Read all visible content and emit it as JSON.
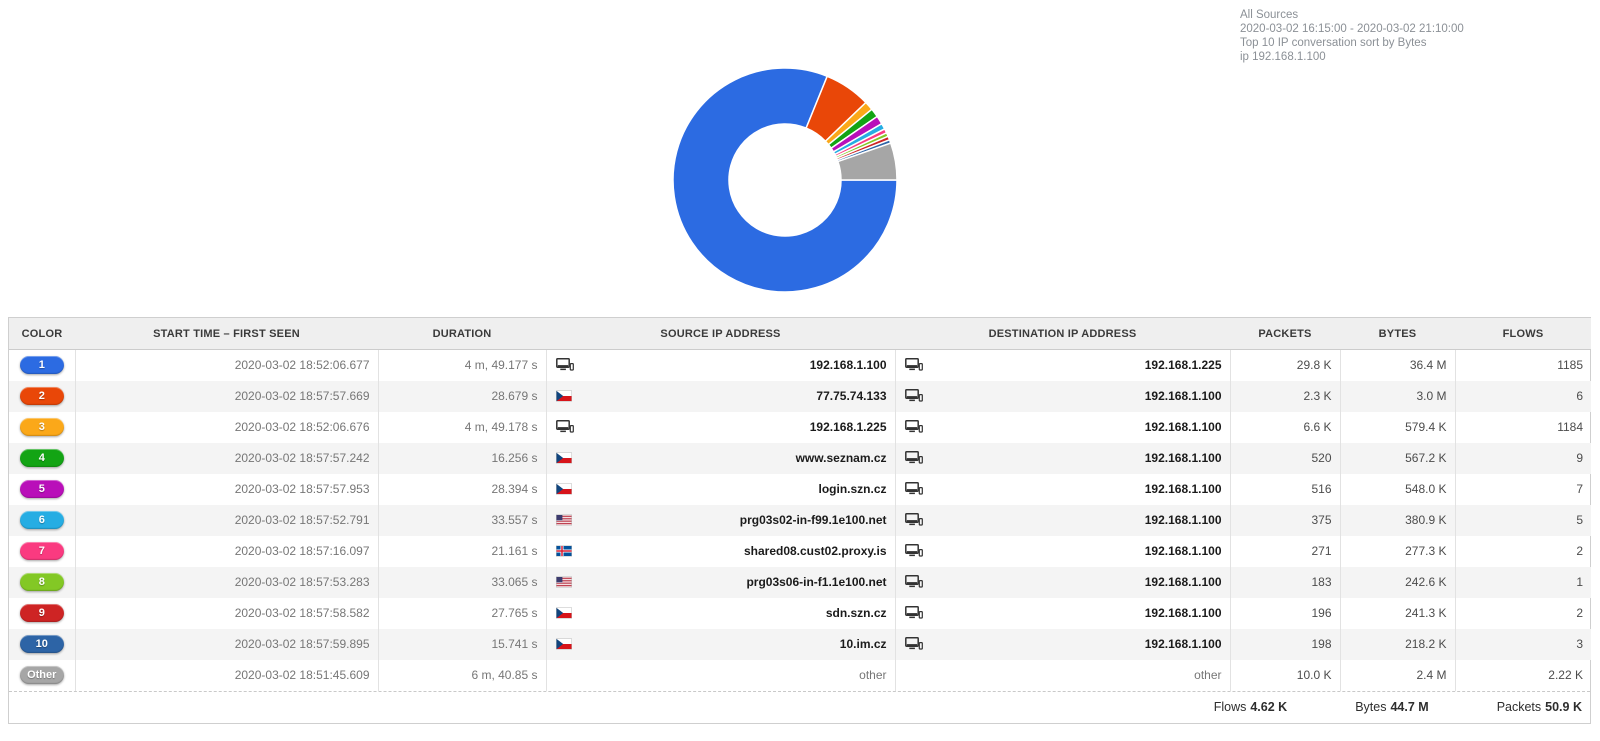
{
  "header_info": {
    "source": "All Sources",
    "time_range": "2020-03-02 16:15:00 - 2020-03-02 21:10:00",
    "report": "Top 10 IP conversation sort by Bytes",
    "filter": "ip 192.168.1.100"
  },
  "chart_data": {
    "type": "pie",
    "subtype": "donut",
    "title": "Top 10 IP conversation sort by Bytes",
    "value_unit": "bytes",
    "start_angle_deg": 90,
    "direction": "clockwise",
    "inner_radius_ratio": 0.5,
    "legend_position": "none",
    "labels": [
      "1",
      "2",
      "3",
      "4",
      "5",
      "6",
      "7",
      "8",
      "9",
      "10",
      "Other"
    ],
    "slice_names": [
      "192.168.1.100 > 192.168.1.225",
      "77.75.74.133 > 192.168.1.100",
      "192.168.1.225 > 192.168.1.100",
      "www.seznam.cz > 192.168.1.100",
      "login.szn.cz > 192.168.1.100",
      "prg03s02-in-f99.1e100.net > 192.168.1.100",
      "shared08.cust02.proxy.is > 192.168.1.100",
      "prg03s06-in-f1.1e100.net > 192.168.1.100",
      "sdn.szn.cz > 192.168.1.100",
      "10.im.cz > 192.168.1.100",
      "other"
    ],
    "values_kbytes": [
      36400,
      3000,
      579.4,
      567.2,
      548.0,
      380.9,
      277.3,
      242.6,
      241.3,
      218.2,
      2400
    ],
    "display_values": [
      "36.4 M",
      "3.0 M",
      "579.4 K",
      "567.2 K",
      "548.0 K",
      "380.9 K",
      "277.3 K",
      "242.6 K",
      "241.3 K",
      "218.2 K",
      "2.4 M"
    ],
    "colors": [
      "#2c6be2",
      "#e94708",
      "#fba819",
      "#13a414",
      "#b90fb9",
      "#26ade3",
      "#fa3a80",
      "#83c825",
      "#ce2424",
      "#2d64a6",
      "#a6a6a6"
    ]
  },
  "table": {
    "columns": [
      "COLOR",
      "START TIME – FIRST SEEN",
      "DURATION",
      "SOURCE IP ADDRESS",
      "DESTINATION IP ADDRESS",
      "PACKETS",
      "BYTES",
      "FLOWS"
    ],
    "rows": [
      {
        "rank": "1",
        "badge_color": "#2c6be2",
        "start_time": "2020-03-02 18:52:06.677",
        "duration": "4 m, 49.177 s",
        "source": {
          "icon": "host",
          "label": "192.168.1.100"
        },
        "destination": {
          "icon": "host",
          "label": "192.168.1.225"
        },
        "packets": "29.8 K",
        "bytes": "36.4 M",
        "flows": "1185"
      },
      {
        "rank": "2",
        "badge_color": "#e94708",
        "start_time": "2020-03-02 18:57:57.669",
        "duration": "28.679 s",
        "source": {
          "icon": "flag-cz",
          "label": "77.75.74.133"
        },
        "destination": {
          "icon": "host",
          "label": "192.168.1.100"
        },
        "packets": "2.3 K",
        "bytes": "3.0 M",
        "flows": "6"
      },
      {
        "rank": "3",
        "badge_color": "#fba819",
        "start_time": "2020-03-02 18:52:06.676",
        "duration": "4 m, 49.178 s",
        "source": {
          "icon": "host",
          "label": "192.168.1.225"
        },
        "destination": {
          "icon": "host",
          "label": "192.168.1.100"
        },
        "packets": "6.6 K",
        "bytes": "579.4 K",
        "flows": "1184"
      },
      {
        "rank": "4",
        "badge_color": "#13a414",
        "start_time": "2020-03-02 18:57:57.242",
        "duration": "16.256 s",
        "source": {
          "icon": "flag-cz",
          "label": "www.seznam.cz"
        },
        "destination": {
          "icon": "host",
          "label": "192.168.1.100"
        },
        "packets": "520",
        "bytes": "567.2 K",
        "flows": "9"
      },
      {
        "rank": "5",
        "badge_color": "#b90fb9",
        "start_time": "2020-03-02 18:57:57.953",
        "duration": "28.394 s",
        "source": {
          "icon": "flag-cz",
          "label": "login.szn.cz"
        },
        "destination": {
          "icon": "host",
          "label": "192.168.1.100"
        },
        "packets": "516",
        "bytes": "548.0 K",
        "flows": "7"
      },
      {
        "rank": "6",
        "badge_color": "#26ade3",
        "start_time": "2020-03-02 18:57:52.791",
        "duration": "33.557 s",
        "source": {
          "icon": "flag-us",
          "label": "prg03s02-in-f99.1e100.net"
        },
        "destination": {
          "icon": "host",
          "label": "192.168.1.100"
        },
        "packets": "375",
        "bytes": "380.9 K",
        "flows": "5"
      },
      {
        "rank": "7",
        "badge_color": "#fa3a80",
        "start_time": "2020-03-02 18:57:16.097",
        "duration": "21.161 s",
        "source": {
          "icon": "flag-is",
          "label": "shared08.cust02.proxy.is"
        },
        "destination": {
          "icon": "host",
          "label": "192.168.1.100"
        },
        "packets": "271",
        "bytes": "277.3 K",
        "flows": "2"
      },
      {
        "rank": "8",
        "badge_color": "#83c825",
        "start_time": "2020-03-02 18:57:53.283",
        "duration": "33.065 s",
        "source": {
          "icon": "flag-us",
          "label": "prg03s06-in-f1.1e100.net"
        },
        "destination": {
          "icon": "host",
          "label": "192.168.1.100"
        },
        "packets": "183",
        "bytes": "242.6 K",
        "flows": "1"
      },
      {
        "rank": "9",
        "badge_color": "#ce2424",
        "start_time": "2020-03-02 18:57:58.582",
        "duration": "27.765 s",
        "source": {
          "icon": "flag-cz",
          "label": "sdn.szn.cz"
        },
        "destination": {
          "icon": "host",
          "label": "192.168.1.100"
        },
        "packets": "196",
        "bytes": "241.3 K",
        "flows": "2"
      },
      {
        "rank": "10",
        "badge_color": "#2d64a6",
        "start_time": "2020-03-02 18:57:59.895",
        "duration": "15.741 s",
        "source": {
          "icon": "flag-cz",
          "label": "10.im.cz"
        },
        "destination": {
          "icon": "host",
          "label": "192.168.1.100"
        },
        "packets": "198",
        "bytes": "218.2 K",
        "flows": "3"
      },
      {
        "rank": "Other",
        "badge_color": "#a6a6a6",
        "start_time": "2020-03-02 18:51:45.609",
        "duration": "6 m, 40.85 s",
        "source": {
          "icon": "none",
          "label": "other"
        },
        "destination": {
          "icon": "none",
          "label": "other"
        },
        "packets": "10.0 K",
        "bytes": "2.4 M",
        "flows": "2.22 K"
      }
    ],
    "totals": {
      "flows_label": "Flows",
      "flows_value": "4.62 K",
      "bytes_label": "Bytes",
      "bytes_value": "44.7 M",
      "packets_label": "Packets",
      "packets_value": "50.9 K"
    }
  }
}
